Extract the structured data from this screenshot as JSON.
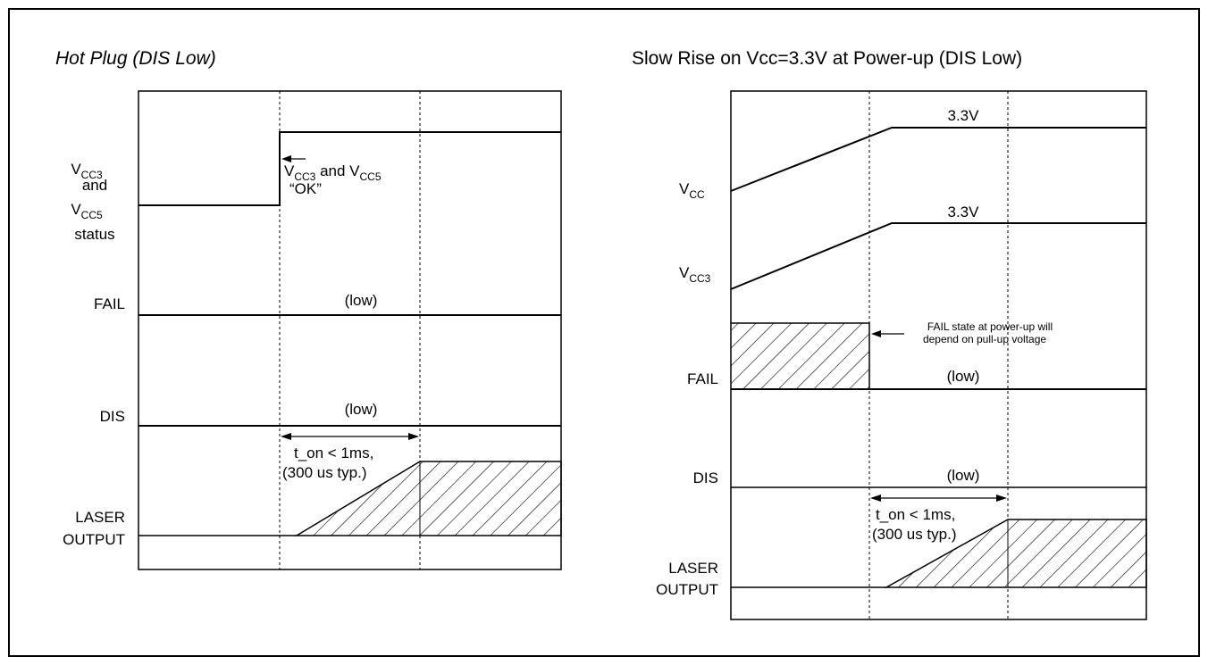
{
  "left": {
    "title": "Hot Plug (DIS Low)",
    "signals": {
      "vcc_status_l1_main": "V",
      "vcc_status_l1_sub": "CC3",
      "vcc_status_l2": "and",
      "vcc_status_l3_main": "V",
      "vcc_status_l3_sub": "CC5",
      "vcc_status_l4": "status",
      "fail": "FAIL",
      "dis": "DIS",
      "laser_l1": "LASER",
      "laser_l2": "OUTPUT"
    },
    "annotations": {
      "ok_l1_v1": "V",
      "ok_l1_sub1": "CC3",
      "ok_l1_and": " and V",
      "ok_l1_sub2": "CC5",
      "ok_l2": "“OK”",
      "fail_low": "(low)",
      "dis_low": "(low)",
      "ton_l1": "t_on < 1ms,",
      "ton_l2": "(300 us typ.)"
    }
  },
  "right": {
    "title": "Slow Rise on Vcc=3.3V at Power-up (DIS Low)",
    "signals": {
      "vcc_main": "V",
      "vcc_sub": "CC",
      "vcc3_main": "V",
      "vcc3_sub": "CC3",
      "fail": "FAIL",
      "dis": "DIS",
      "laser_l1": "LASER",
      "laser_l2": "OUTPUT"
    },
    "annotations": {
      "vcc_level": "3.3V",
      "vcc3_level": "3.3V",
      "fail_note_l1": "FAIL state at power-up will",
      "fail_note_l2": "depend on pull-up voltage",
      "fail_low": "(low)",
      "dis_low": "(low)",
      "ton_l1": "t_on < 1ms,",
      "ton_l2": "(300 us typ.)"
    }
  }
}
